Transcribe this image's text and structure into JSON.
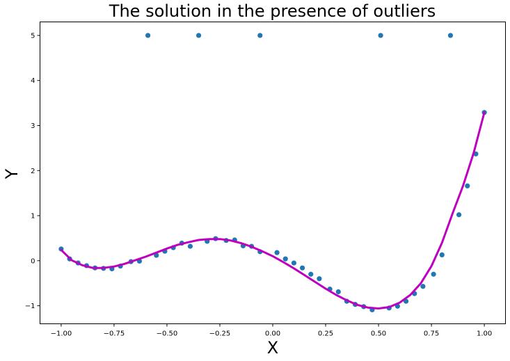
{
  "chart_data": {
    "type": "scatter",
    "title": "The solution in the presence of outliers",
    "xlabel": "X",
    "ylabel": "Y",
    "xlim": [
      -1.1,
      1.1
    ],
    "ylim": [
      -1.4,
      5.3
    ],
    "xticks": [
      -1.0,
      -0.75,
      -0.5,
      -0.25,
      0.0,
      0.25,
      0.5,
      0.75,
      1.0
    ],
    "xtick_labels": [
      "−1.00",
      "−0.75",
      "−0.50",
      "−0.25",
      "0.00",
      "0.25",
      "0.50",
      "0.75",
      "1.00"
    ],
    "yticks": [
      -1,
      0,
      1,
      2,
      3,
      4,
      5
    ],
    "ytick_labels": [
      "−1",
      "0",
      "1",
      "2",
      "3",
      "4",
      "5"
    ],
    "grid": false,
    "series": [
      {
        "kind": "scatter",
        "color": "#1f77b4",
        "points": [
          [
            -1.0,
            0.26
          ],
          [
            -0.96,
            0.04
          ],
          [
            -0.92,
            -0.05
          ],
          [
            -0.88,
            -0.11
          ],
          [
            -0.84,
            -0.16
          ],
          [
            -0.8,
            -0.17
          ],
          [
            -0.76,
            -0.18
          ],
          [
            -0.72,
            -0.12
          ],
          [
            -0.67,
            -0.02
          ],
          [
            -0.63,
            -0.01
          ],
          [
            -0.55,
            0.12
          ],
          [
            -0.51,
            0.21
          ],
          [
            -0.47,
            0.29
          ],
          [
            -0.43,
            0.39
          ],
          [
            -0.39,
            0.32
          ],
          [
            -0.31,
            0.43
          ],
          [
            -0.27,
            0.49
          ],
          [
            -0.22,
            0.45
          ],
          [
            -0.18,
            0.46
          ],
          [
            -0.14,
            0.33
          ],
          [
            -0.1,
            0.32
          ],
          [
            -0.06,
            0.2
          ],
          [
            0.02,
            0.18
          ],
          [
            0.06,
            0.04
          ],
          [
            0.1,
            -0.05
          ],
          [
            0.14,
            -0.16
          ],
          [
            0.18,
            -0.3
          ],
          [
            0.22,
            -0.4
          ],
          [
            0.27,
            -0.63
          ],
          [
            0.31,
            -0.69
          ],
          [
            0.35,
            -0.9
          ],
          [
            0.39,
            -0.97
          ],
          [
            0.43,
            -1.02
          ],
          [
            0.47,
            -1.09
          ],
          [
            0.55,
            -1.05
          ],
          [
            0.59,
            -1.01
          ],
          [
            0.63,
            -0.9
          ],
          [
            0.67,
            -0.73
          ],
          [
            0.71,
            -0.57
          ],
          [
            0.76,
            -0.3
          ],
          [
            0.8,
            0.13
          ],
          [
            0.88,
            1.02
          ],
          [
            0.92,
            1.66
          ],
          [
            0.96,
            2.37
          ],
          [
            1.0,
            3.29
          ],
          [
            -0.59,
            5.0
          ],
          [
            -0.35,
            5.0
          ],
          [
            -0.06,
            5.0
          ],
          [
            0.51,
            5.0
          ],
          [
            0.84,
            5.0
          ]
        ]
      },
      {
        "kind": "line",
        "color": "#bf00bf",
        "x": [
          -1.0,
          -0.95,
          -0.9,
          -0.85,
          -0.8,
          -0.75,
          -0.7,
          -0.65,
          -0.6,
          -0.55,
          -0.5,
          -0.45,
          -0.4,
          -0.35,
          -0.3,
          -0.25,
          -0.2,
          -0.15,
          -0.1,
          -0.05,
          0.0,
          0.05,
          0.1,
          0.15,
          0.2,
          0.25,
          0.3,
          0.35,
          0.4,
          0.45,
          0.5,
          0.55,
          0.6,
          0.65,
          0.7,
          0.75,
          0.8,
          0.85,
          0.9,
          0.95,
          1.0
        ],
        "y": [
          0.24,
          0.01,
          -0.1,
          -0.16,
          -0.16,
          -0.13,
          -0.07,
          0.01,
          0.09,
          0.18,
          0.27,
          0.35,
          0.41,
          0.46,
          0.48,
          0.48,
          0.45,
          0.39,
          0.31,
          0.21,
          0.1,
          -0.03,
          -0.17,
          -0.32,
          -0.47,
          -0.62,
          -0.76,
          -0.88,
          -0.98,
          -1.04,
          -1.06,
          -1.03,
          -0.93,
          -0.76,
          -0.5,
          -0.12,
          0.4,
          1.05,
          1.67,
          2.4,
          3.29
        ]
      }
    ]
  }
}
